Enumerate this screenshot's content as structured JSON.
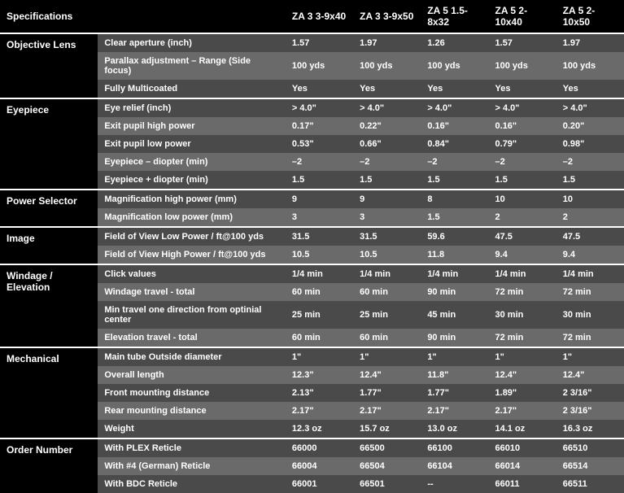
{
  "header": {
    "specifications": "Specifications",
    "models": [
      "ZA 3 3-9x40",
      "ZA 3 3-9x50",
      "ZA 5 1.5-8x32",
      "ZA 5 2-10x40",
      "ZA 5 2-10x50"
    ]
  },
  "sections": [
    {
      "category": "Objective Lens",
      "rows": [
        {
          "label": "Clear aperture (inch)",
          "values": [
            "1.57",
            "1.97",
            "1.26",
            "1.57",
            "1.97"
          ]
        },
        {
          "label": "Parallax adjustment – Range (Side focus)",
          "values": [
            "100 yds",
            "100 yds",
            "100 yds",
            "100 yds",
            "100 yds"
          ]
        },
        {
          "label": "Fully Multicoated",
          "values": [
            "Yes",
            "Yes",
            "Yes",
            "Yes",
            "Yes"
          ]
        }
      ]
    },
    {
      "category": "Eyepiece",
      "rows": [
        {
          "label": "Eye relief (inch)",
          "values": [
            "> 4.0\"",
            "> 4.0\"",
            "> 4.0\"",
            "> 4.0\"",
            "> 4.0\""
          ]
        },
        {
          "label": "Exit pupil high power",
          "values": [
            "0.17\"",
            "0.22\"",
            "0.16\"",
            "0.16\"",
            "0.20\""
          ]
        },
        {
          "label": "Exit pupil low power",
          "values": [
            "0.53\"",
            "0.66\"",
            "0.84\"",
            "0.79\"",
            "0.98\""
          ]
        },
        {
          "label": "Eyepiece  – diopter (min)",
          "values": [
            "–2",
            "–2",
            "–2",
            "–2",
            "–2"
          ]
        },
        {
          "label": "Eyepiece  + diopter (min)",
          "values": [
            "1.5",
            "1.5",
            "1.5",
            "1.5",
            "1.5"
          ]
        }
      ]
    },
    {
      "category": "Power Selector",
      "rows": [
        {
          "label": "Magnification high power (mm)",
          "values": [
            "9",
            "9",
            "8",
            "10",
            "10"
          ]
        },
        {
          "label": "Magnification low power (mm)",
          "values": [
            "3",
            "3",
            "1.5",
            "2",
            "2"
          ]
        }
      ]
    },
    {
      "category": "Image",
      "rows": [
        {
          "label": "Field of View Low Power / ft@100 yds",
          "values": [
            "31.5",
            "31.5",
            "59.6",
            "47.5",
            "47.5"
          ]
        },
        {
          "label": "Field of View High Power / ft@100 yds",
          "values": [
            "10.5",
            "10.5",
            "11.8",
            "9.4",
            "9.4"
          ]
        }
      ]
    },
    {
      "category": "Windage / Elevation",
      "rows": [
        {
          "label": "Click values",
          "values": [
            "1/4 min",
            "1/4 min",
            "1/4 min",
            "1/4 min",
            "1/4 min"
          ]
        },
        {
          "label": "Windage travel - total",
          "values": [
            "60 min",
            "60 min",
            "90 min",
            "72 min",
            "72 min"
          ]
        },
        {
          "label": "Min travel one direction from optinial center",
          "values": [
            "25 min",
            "25 min",
            "45 min",
            "30 min",
            "30 min"
          ]
        },
        {
          "label": "Elevation travel - total",
          "values": [
            "60 min",
            "60 min",
            "90 min",
            "72 min",
            "72 min"
          ]
        }
      ]
    },
    {
      "category": "Mechanical",
      "rows": [
        {
          "label": "Main tube Outside diameter",
          "values": [
            "1\"",
            "1\"",
            "1\"",
            "1\"",
            "1\""
          ]
        },
        {
          "label": "Overall length",
          "values": [
            "12.3\"",
            "12.4\"",
            "11.8\"",
            "12.4\"",
            "12.4\""
          ]
        },
        {
          "label": "Front mounting distance",
          "values": [
            "2.13\"",
            "1.77\"",
            "1.77\"",
            "1.89\"",
            "2 3/16\""
          ]
        },
        {
          "label": "Rear mounting distance",
          "values": [
            "2.17\"",
            "2.17\"",
            "2.17\"",
            "2.17\"",
            "2 3/16\""
          ]
        },
        {
          "label": "Weight",
          "values": [
            "12.3 oz",
            "15.7 oz",
            "13.0 oz",
            "14.1 oz",
            "16.3 oz"
          ]
        }
      ]
    },
    {
      "category": "Order Number",
      "rows": [
        {
          "label": "With PLEX Reticle",
          "values": [
            "66000",
            "66500",
            "66100",
            "66010",
            "66510"
          ]
        },
        {
          "label": "With #4 (German) Reticle",
          "values": [
            "66004",
            "66504",
            "66104",
            "66014",
            "66514"
          ]
        },
        {
          "label": "With BDC Reticle",
          "values": [
            "66001",
            "66501",
            "--",
            "66011",
            "66511"
          ]
        }
      ]
    }
  ],
  "style": {
    "background": "#000000",
    "row_alt_dark": "#4a4a4a",
    "row_alt_light": "#6a6a6a",
    "text_color": "#ffffff",
    "divider_color": "#ffffff",
    "font_size_header": 12,
    "font_size_body": 11
  }
}
